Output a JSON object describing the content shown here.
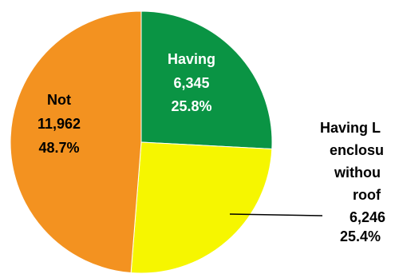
{
  "chart_data": {
    "type": "pie",
    "title": "",
    "slices": [
      {
        "label": "Having",
        "value_label": "6,345",
        "percent_label": "25.8%",
        "value": 6345,
        "percent": 25.8,
        "color": "#0a9444",
        "text_color": "#ffffff"
      },
      {
        "label": "Having L enclosu withou roof",
        "value_label": "6,246",
        "percent_label": "25.4%",
        "value": 6246,
        "percent": 25.4,
        "color": "#f6f600",
        "text_color": "#000000"
      },
      {
        "label": "Not",
        "value_label": "11,962",
        "percent_label": "48.7%",
        "value": 11962,
        "percent": 48.7,
        "color": "#f39220",
        "text_color": "#000000"
      }
    ]
  }
}
